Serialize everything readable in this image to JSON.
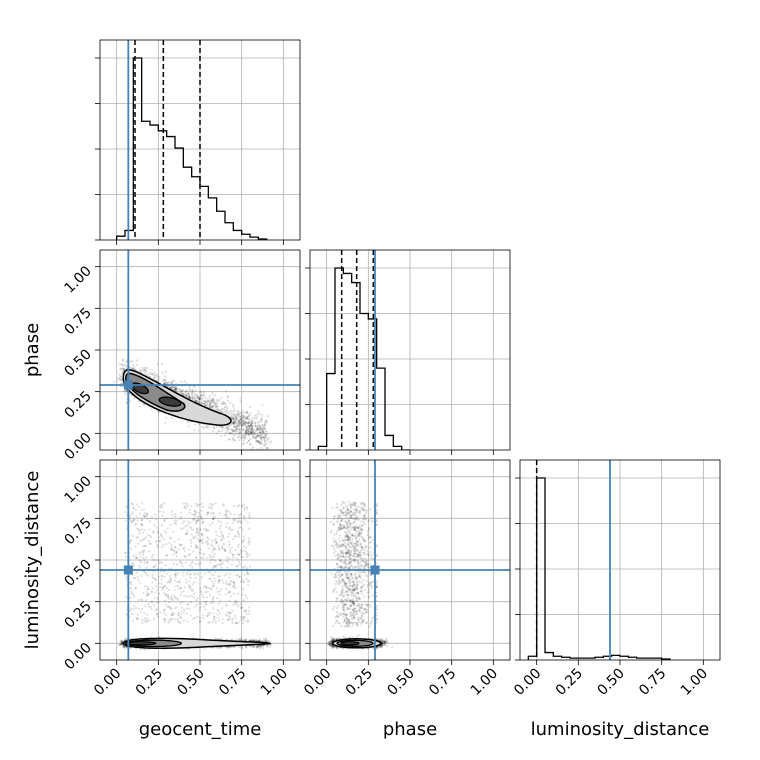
{
  "chart_data": {
    "type": "corner",
    "parameters": [
      {
        "key": "geocent_time",
        "label": "geocent_time",
        "truth": 0.07,
        "quantiles": [
          0.11,
          0.28,
          0.5
        ]
      },
      {
        "key": "phase",
        "label": "phase",
        "truth": 0.29,
        "quantiles": [
          0.09,
          0.18,
          0.28
        ]
      },
      {
        "key": "luminosity_distance",
        "label": "luminosity_distance",
        "truth": 0.44,
        "quantiles": [
          0.0
        ]
      }
    ],
    "axis_range": [
      -0.1,
      1.1
    ],
    "ticks": [
      0.0,
      0.25,
      0.5,
      0.75,
      1.0
    ],
    "tick_labels": [
      "0.00",
      "0.25",
      "0.50",
      "0.75",
      "1.00"
    ],
    "grid": true,
    "truth_color": "#4682b4",
    "marginal_histograms": {
      "geocent_time": {
        "bin_edges": [
          0.0,
          0.05,
          0.1,
          0.15,
          0.2,
          0.25,
          0.3,
          0.35,
          0.4,
          0.45,
          0.5,
          0.55,
          0.6,
          0.65,
          0.7,
          0.75,
          0.8,
          0.85,
          0.9
        ],
        "values": [
          0.02,
          0.05,
          0.95,
          0.62,
          0.6,
          0.57,
          0.54,
          0.48,
          0.38,
          0.33,
          0.28,
          0.22,
          0.15,
          0.09,
          0.05,
          0.03,
          0.015,
          0.005
        ]
      },
      "phase": {
        "bin_edges": [
          -0.05,
          0.0,
          0.05,
          0.1,
          0.15,
          0.2,
          0.25,
          0.3,
          0.35,
          0.4,
          0.45,
          0.5
        ],
        "values": [
          0.02,
          0.42,
          1.0,
          0.97,
          0.92,
          0.75,
          0.72,
          0.45,
          0.08,
          0.02,
          0.0
        ]
      },
      "luminosity_distance": {
        "bin_edges": [
          -0.05,
          0.0,
          0.05,
          0.1,
          0.15,
          0.2,
          0.25,
          0.3,
          0.35,
          0.4,
          0.45,
          0.5,
          0.55,
          0.6,
          0.65,
          0.7,
          0.75,
          0.8
        ],
        "values": [
          0.02,
          0.98,
          0.04,
          0.02,
          0.015,
          0.01,
          0.01,
          0.01,
          0.015,
          0.02,
          0.025,
          0.02,
          0.015,
          0.01,
          0.01,
          0.01,
          0.005
        ]
      }
    },
    "pairs": [
      {
        "x": "geocent_time",
        "y": "phase"
      },
      {
        "x": "geocent_time",
        "y": "luminosity_distance"
      },
      {
        "x": "phase",
        "y": "luminosity_distance"
      }
    ]
  }
}
